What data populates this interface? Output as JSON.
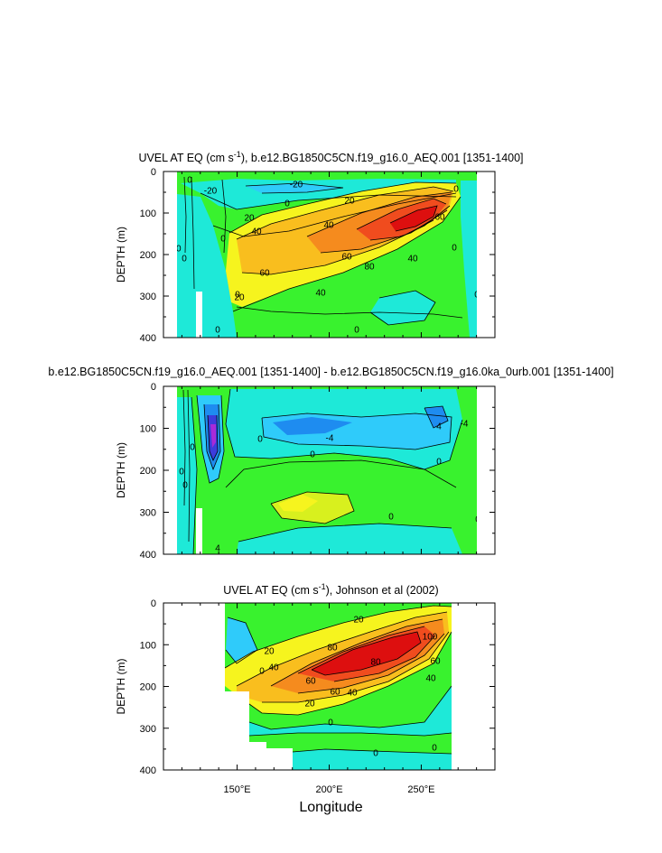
{
  "panels": [
    {
      "title_pre": "UVEL AT EQ (cm s",
      "title_sup": "-1",
      "title_post": "), b.e12.BG1850C5CN.f19_g16.0_AEQ.001 [1351-1400]",
      "ylabel": "DEPTH (m)",
      "yticks": [
        "0",
        "100",
        "200",
        "300",
        "400"
      ],
      "contour_labels": [
        "-20",
        "-20",
        "0",
        "20",
        "40",
        "20",
        "40",
        "60",
        "60",
        "80",
        "60",
        "40",
        "40",
        "20",
        "20",
        "0",
        "0",
        "0",
        "0",
        "0",
        "0",
        "0",
        "0",
        "0"
      ]
    },
    {
      "title_pre": "b.e12.BG1850C5CN.f19_g16.0_AEQ.001 [1351-1400] - b.e12.BG1850C5CN.f19_g16.0ka_0urb.001 [1351-1400]",
      "title_sup": "",
      "title_post": "",
      "ylabel": "DEPTH (m)",
      "yticks": [
        "0",
        "100",
        "200",
        "300",
        "400"
      ],
      "contour_labels": [
        "-4",
        "-4",
        "0",
        "4",
        "0",
        "0",
        "0",
        "0",
        "0",
        "0",
        "0",
        "4"
      ]
    },
    {
      "title_pre": "UVEL AT EQ (cm s",
      "title_sup": "-1",
      "title_post": "), Johnson et al (2002)",
      "ylabel": "DEPTH (m)",
      "yticks": [
        "0",
        "100",
        "200",
        "300",
        "400"
      ],
      "contour_labels": [
        "20",
        "40",
        "60",
        "80",
        "100",
        "80",
        "60",
        "60",
        "40",
        "20",
        "40",
        "20",
        "0",
        "20",
        "0",
        "0",
        "0"
      ]
    }
  ],
  "xlabel": "Longitude",
  "xticks": [
    "150°E",
    "200°E",
    "250°E"
  ],
  "chart_data": [
    {
      "type": "heatmap",
      "title": "UVEL AT EQ (cm s-1), b.e12.BG1850C5CN.f19_g16.0_AEQ.001 [1351-1400]",
      "xlabel": "Longitude",
      "ylabel": "DEPTH (m)",
      "xlim": [
        110,
        290
      ],
      "ylim": [
        400,
        0
      ],
      "model_xrange": [
        117,
        280
      ],
      "core": {
        "lon": 235,
        "depth": 125,
        "max": 90
      },
      "thermocline_slope": {
        "west": {
          "lon": 150,
          "depth": 215
        },
        "east": {
          "lon": 262,
          "depth": 105
        }
      },
      "surface_westward": {
        "lon": 190,
        "depth": 20,
        "value": -20
      },
      "levels": [
        -20,
        0,
        20,
        40,
        60,
        80
      ]
    },
    {
      "type": "heatmap",
      "title": "b.e12.BG1850C5CN.f19_g16.0_AEQ.001 [1351-1400] - b.e12.BG1850C5CN.f19_g16.0ka_0urb.001 [1351-1400]",
      "xlabel": "Longitude",
      "ylabel": "DEPTH (m)",
      "xlim": [
        110,
        290
      ],
      "ylim": [
        400,
        0
      ],
      "model_xrange": [
        117,
        280
      ],
      "negative_west": {
        "lon": 135,
        "depth": 115,
        "min": -16
      },
      "negative_central": {
        "lon": 185,
        "depth": 80,
        "min": -8
      },
      "positive_subsurface": {
        "lon": 185,
        "depth": 270,
        "max": 6
      },
      "levels": [
        -16,
        -12,
        -8,
        -4,
        0,
        4
      ]
    },
    {
      "type": "heatmap",
      "title": "UVEL AT EQ (cm s-1), Johnson et al (2002)",
      "xlabel": "Longitude",
      "ylabel": "DEPTH (m)",
      "xlim": [
        110,
        290
      ],
      "ylim": [
        400,
        0
      ],
      "obs_xrange": [
        143,
        265
      ],
      "core": {
        "lon": 222,
        "depth": 115,
        "max": 100
      },
      "levels": [
        -20,
        0,
        20,
        40,
        60,
        80,
        100
      ]
    }
  ]
}
